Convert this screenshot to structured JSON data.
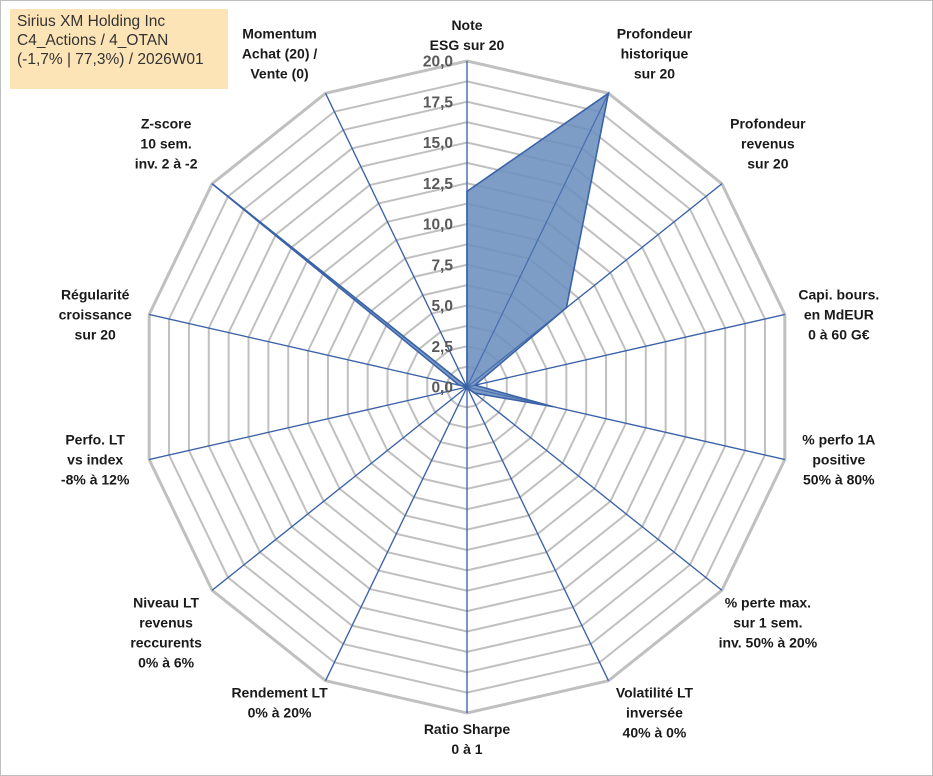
{
  "title_box": {
    "line1": "Sirius XM Holding Inc",
    "line2": "C4_Actions / 4_OTAN",
    "line3": "(-1,7% | 77,3%) / 2026W01"
  },
  "chart_data": {
    "type": "radar",
    "rlim": [
      0,
      20
    ],
    "ticks": [
      "0,0",
      "2,5",
      "5,0",
      "7,5",
      "10,0",
      "12,5",
      "15,0",
      "17,5",
      "20,0"
    ],
    "tick_values": [
      0,
      2.5,
      5,
      7.5,
      10,
      12.5,
      15,
      17.5,
      20
    ],
    "minor_step": 1.25,
    "grid": true,
    "colors": {
      "grid": "#c0c0c0",
      "spoke": "#3c63a8",
      "fill": "#6b8fbf",
      "edge": "#3a63a8"
    },
    "axes": [
      {
        "lines": [
          "Note",
          "ESG sur 20"
        ]
      },
      {
        "lines": [
          "Profondeur",
          "historique",
          "sur 20"
        ]
      },
      {
        "lines": [
          "Profondeur",
          "revenus",
          "sur 20"
        ]
      },
      {
        "lines": [
          "Capi. bours.",
          "en MdEUR",
          "0 à 60 G€"
        ]
      },
      {
        "lines": [
          "% perfo 1A",
          "positive",
          "50% à 80%"
        ]
      },
      {
        "lines": [
          "% perte max.",
          "sur 1 sem.",
          "inv. 50% à 20%"
        ]
      },
      {
        "lines": [
          "Volatilité LT",
          "inversée",
          "40% à 0%"
        ]
      },
      {
        "lines": [
          "Ratio Sharpe",
          "0 à 1"
        ]
      },
      {
        "lines": [
          "Rendement LT",
          "0% à 20%"
        ]
      },
      {
        "lines": [
          "Niveau LT",
          "revenus",
          "reccurents",
          "0% à 6%"
        ]
      },
      {
        "lines": [
          "Perfo. LT",
          "vs index",
          "-8% à 12%"
        ]
      },
      {
        "lines": [
          "Régularité",
          "croissance",
          "sur 20"
        ]
      },
      {
        "lines": [
          "Z-score",
          "10 sem.",
          "inv. 2 à -2"
        ]
      },
      {
        "lines": [
          "Momentum",
          "Achat (20) /",
          "Vente (0)"
        ]
      }
    ],
    "series": [
      {
        "name": "Sirius XM Holding Inc",
        "values": [
          12.0,
          20.0,
          7.8,
          0.5,
          5.4,
          0.6,
          0.1,
          0.0,
          0.0,
          0.0,
          0.0,
          0.5,
          20.0,
          0.0
        ]
      }
    ]
  }
}
